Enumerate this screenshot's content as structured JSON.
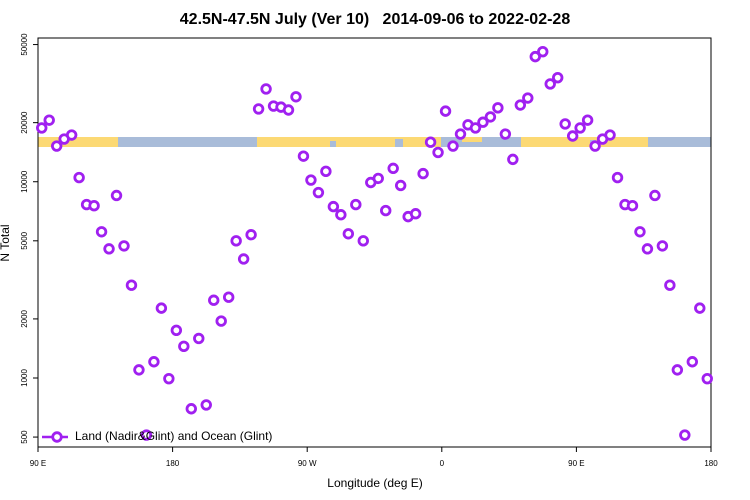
{
  "chart_data": {
    "type": "scatter",
    "title": "42.5N-47.5N July (Ver 10)   2014-09-06 to 2022-02-28",
    "xlabel": "Longitude (deg E)",
    "ylabel": "N Total",
    "xlim": [
      90,
      540
    ],
    "xticks": [
      {
        "value": 90,
        "label": "90 E"
      },
      180,
      {
        "value": 270,
        "label": "90 W"
      },
      {
        "value": 360,
        "label": "0"
      },
      {
        "value": 450,
        "label": "90 E"
      },
      {
        "value": 540,
        "label": "180"
      }
    ],
    "ylim": [
      445,
      54000
    ],
    "yticks": [
      500,
      1000,
      2000,
      5000,
      10000,
      20000,
      50000
    ],
    "log_y": true,
    "legend": "lower left",
    "x": [
      92.5,
      97.5,
      102.5,
      107.5,
      112.5,
      117.5,
      122.5,
      127.5,
      132.5,
      137.5,
      142.5,
      147.5,
      152.5,
      157.5,
      162.5,
      167.5,
      172.5,
      177.5,
      182.5,
      187.5,
      192.5,
      197.5,
      202.5,
      207.5,
      212.5,
      217.5,
      222.5,
      227.5,
      232.5,
      237.5,
      242.5,
      247.5,
      252.5,
      257.5,
      262.5,
      267.5,
      272.5,
      277.5,
      282.5,
      287.5,
      292.5,
      297.5,
      302.5,
      307.5,
      312.5,
      317.5,
      322.5,
      327.5,
      332.5,
      337.5,
      342.5,
      347.5,
      352.5,
      357.5,
      362.5,
      367.5,
      372.5,
      377.5,
      382.5,
      387.5,
      392.5,
      397.5,
      402.5,
      407.5,
      412.5,
      417.5,
      422.5,
      427.5,
      432.5,
      437.5,
      442.5,
      447.5,
      452.5,
      457.5,
      462.5,
      467.5,
      472.5,
      477.5,
      482.5,
      487.5,
      492.5,
      497.5,
      502.5,
      507.5,
      512.5,
      517.5,
      522.5,
      527.5,
      532.5,
      537.5
    ],
    "series": [
      {
        "name": "Land (Nadir&Glint) and Ocean (Glint)",
        "color": "#a020f0",
        "values": [
          18800,
          20600,
          15200,
          16500,
          17300,
          10500,
          7650,
          7550,
          5560,
          4550,
          8510,
          4710,
          2970,
          1100,
          512,
          1210,
          2270,
          992,
          1750,
          1450,
          697,
          1590,
          729,
          2490,
          1950,
          2580,
          5000,
          4040,
          5370,
          23500,
          29700,
          24300,
          24000,
          23200,
          27100,
          13500,
          10200,
          8810,
          11300,
          7470,
          6790,
          5430,
          7650,
          5000,
          9910,
          10400,
          7130,
          11700,
          9570,
          6640,
          6870,
          11000,
          15900,
          14100,
          22900,
          15200,
          17500,
          19500,
          18800,
          20100,
          21400,
          23800,
          17500,
          13000,
          24600,
          26700,
          43400,
          46000,
          31500,
          33900,
          19700,
          17100,
          18800,
          20600,
          15200,
          16500,
          17300,
          10500,
          7650,
          7550,
          5560,
          4550,
          8510,
          4710,
          2970,
          1100,
          512,
          1210,
          2270,
          992
        ]
      }
    ]
  }
}
